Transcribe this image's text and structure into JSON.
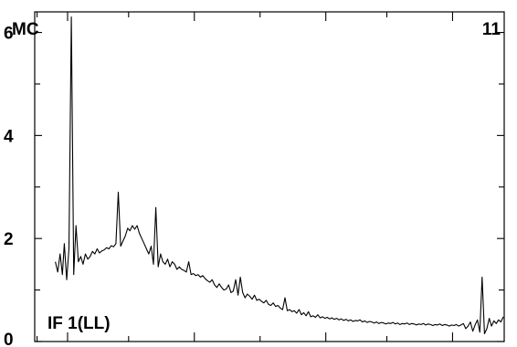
{
  "chart_data": {
    "type": "line",
    "corner_labels": {
      "top_left": "MC",
      "top_right": "11",
      "bottom_left": "IF 1(LL)"
    },
    "xlim": [
      0,
      100
    ],
    "ylim": [
      0,
      6.4
    ],
    "y_ticks": [
      {
        "value": 0,
        "label": "0"
      },
      {
        "value": 2,
        "label": "2"
      },
      {
        "value": 4,
        "label": "4"
      },
      {
        "value": 6,
        "label": "6"
      }
    ],
    "y_minor_ticks": [
      1,
      3,
      5
    ],
    "x_major_ticks": [
      7,
      34,
      62,
      89
    ],
    "x_minor_ticks": [
      0.5,
      20,
      48,
      75
    ],
    "grid": false,
    "legend": "none",
    "line_color": "#000000",
    "series": [
      {
        "x": [
          4.4,
          4.9,
          5.4,
          5.9,
          6.3,
          6.8,
          7.3,
          7.8,
          8.3,
          8.8,
          9.3,
          9.8,
          10.3,
          10.8,
          11.3,
          11.8,
          12.3,
          12.8,
          13.3,
          13.8,
          14.3,
          14.8,
          15.3,
          15.8,
          16.3,
          16.8,
          17.3,
          17.8,
          18.3,
          18.8,
          19.3,
          19.8,
          20.3,
          20.8,
          21.3,
          21.8,
          22.3,
          22.8,
          23.3,
          23.8,
          24.3,
          24.8,
          25.3,
          25.8,
          26.3,
          26.8,
          27.3,
          27.8,
          28.3,
          28.8,
          29.3,
          29.8,
          30.3,
          30.8,
          31.3,
          31.8,
          32.3,
          32.8,
          33.3,
          33.8,
          34.3,
          34.8,
          35.3,
          35.8,
          36.3,
          36.8,
          37.3,
          37.8,
          38.3,
          38.8,
          39.3,
          39.8,
          40.3,
          40.8,
          41.3,
          41.8,
          42.3,
          42.8,
          43.3,
          43.8,
          44.3,
          44.8,
          45.3,
          45.8,
          46.3,
          46.8,
          47.3,
          47.8,
          48.3,
          48.8,
          49.3,
          49.8,
          50.3,
          50.8,
          51.3,
          51.8,
          52.3,
          52.8,
          53.3,
          53.8,
          54.3,
          54.8,
          55.3,
          55.8,
          56.3,
          56.8,
          57.3,
          57.8,
          58.3,
          58.8,
          59.3,
          59.8,
          60.3,
          60.8,
          61.3,
          61.8,
          62.3,
          62.8,
          63.3,
          63.8,
          64.3,
          64.8,
          65.3,
          65.8,
          66.3,
          66.8,
          67.3,
          67.8,
          68.3,
          68.8,
          69.3,
          69.8,
          70.3,
          70.8,
          71.3,
          71.8,
          72.3,
          72.8,
          73.3,
          73.8,
          74.3,
          74.8,
          75.3,
          75.8,
          76.3,
          76.8,
          77.3,
          77.8,
          78.3,
          78.8,
          79.3,
          79.8,
          80.3,
          80.8,
          81.3,
          81.8,
          82.3,
          82.8,
          83.3,
          83.8,
          84.3,
          84.8,
          85.3,
          85.8,
          86.3,
          86.8,
          87.3,
          87.8,
          88.3,
          88.8,
          89.3,
          89.8,
          90.3,
          90.8,
          91.3,
          91.8,
          92.3,
          92.8,
          93.3,
          93.8,
          94.3,
          94.8,
          95.3,
          95.8,
          96.3,
          96.8,
          97.3,
          97.8,
          98.3,
          98.8,
          99.3,
          99.8
        ],
        "y": [
          1.55,
          1.35,
          1.7,
          1.3,
          1.9,
          1.2,
          1.8,
          6.3,
          1.3,
          2.25,
          1.55,
          1.65,
          1.5,
          1.7,
          1.6,
          1.65,
          1.75,
          1.7,
          1.8,
          1.72,
          1.76,
          1.78,
          1.82,
          1.8,
          1.86,
          1.84,
          1.9,
          2.9,
          1.85,
          1.95,
          2.05,
          2.2,
          2.15,
          2.25,
          2.18,
          2.25,
          2.1,
          2.0,
          1.9,
          1.8,
          1.7,
          1.85,
          1.5,
          2.6,
          1.45,
          1.7,
          1.55,
          1.5,
          1.6,
          1.45,
          1.55,
          1.5,
          1.4,
          1.45,
          1.4,
          1.38,
          1.35,
          1.55,
          1.3,
          1.32,
          1.28,
          1.3,
          1.25,
          1.28,
          1.22,
          1.18,
          1.15,
          1.2,
          1.1,
          1.05,
          1.12,
          1.05,
          1.0,
          1.02,
          1.1,
          0.95,
          0.98,
          1.2,
          0.9,
          1.25,
          0.95,
          0.85,
          0.92,
          0.88,
          0.82,
          0.9,
          0.8,
          0.82,
          0.78,
          0.75,
          0.8,
          0.72,
          0.7,
          0.75,
          0.68,
          0.7,
          0.65,
          0.62,
          0.85,
          0.6,
          0.62,
          0.58,
          0.6,
          0.55,
          0.62,
          0.52,
          0.56,
          0.5,
          0.58,
          0.48,
          0.5,
          0.47,
          0.52,
          0.46,
          0.48,
          0.45,
          0.47,
          0.44,
          0.46,
          0.43,
          0.45,
          0.42,
          0.44,
          0.41,
          0.43,
          0.4,
          0.42,
          0.39,
          0.41,
          0.4,
          0.42,
          0.38,
          0.4,
          0.37,
          0.39,
          0.38,
          0.36,
          0.38,
          0.35,
          0.37,
          0.36,
          0.34,
          0.36,
          0.35,
          0.37,
          0.34,
          0.36,
          0.33,
          0.35,
          0.34,
          0.36,
          0.33,
          0.35,
          0.34,
          0.32,
          0.34,
          0.33,
          0.35,
          0.32,
          0.34,
          0.33,
          0.31,
          0.33,
          0.32,
          0.34,
          0.31,
          0.33,
          0.32,
          0.3,
          0.32,
          0.31,
          0.33,
          0.3,
          0.32,
          0.35,
          0.25,
          0.3,
          0.38,
          0.2,
          0.32,
          0.42,
          0.18,
          1.25,
          0.15,
          0.25,
          0.45,
          0.3,
          0.4,
          0.35,
          0.42,
          0.38,
          0.48
        ]
      }
    ]
  }
}
